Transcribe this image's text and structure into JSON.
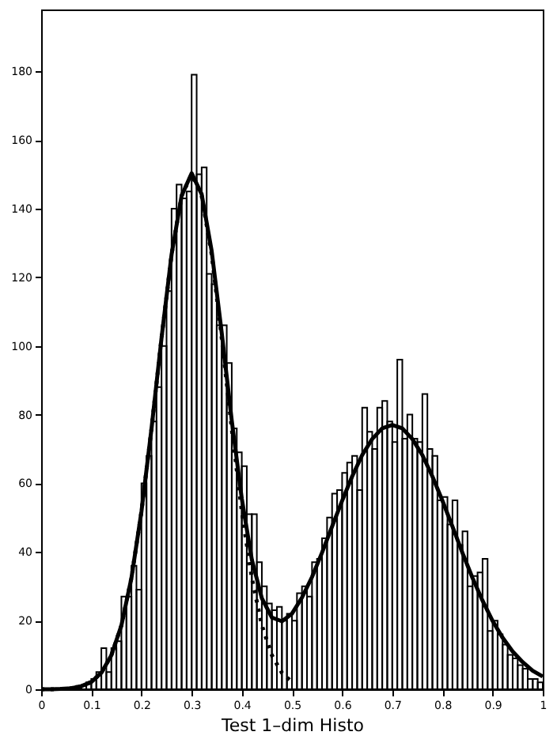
{
  "chart_data": {
    "type": "histogram",
    "xlabel": "Test 1–dim Histo",
    "xlim": [
      0,
      1
    ],
    "xticks": [
      0,
      0.1,
      0.2,
      0.3,
      0.4,
      0.5,
      0.6,
      0.7,
      0.8,
      0.9,
      1
    ],
    "ylim": [
      0,
      198
    ],
    "yticks": [
      0,
      20,
      40,
      60,
      80,
      100,
      120,
      140,
      160,
      180
    ],
    "series": [
      {
        "color": "#000000",
        "bins": [
          0,
          0.01,
          0.02,
          0.03,
          0.04,
          0.05,
          0.06,
          0.07,
          0.08,
          0.09,
          0.1,
          0.11,
          0.12,
          0.13,
          0.14,
          0.15,
          0.16,
          0.17,
          0.18,
          0.19,
          0.2,
          0.21,
          0.22,
          0.23,
          0.24,
          0.25,
          0.26,
          0.27,
          0.28,
          0.29,
          0.3,
          0.31,
          0.32,
          0.33,
          0.34,
          0.35,
          0.36,
          0.37,
          0.38,
          0.39,
          0.4,
          0.41,
          0.42,
          0.43,
          0.44,
          0.45,
          0.46,
          0.47,
          0.48,
          0.49,
          0.5,
          0.51,
          0.52,
          0.53,
          0.54,
          0.55,
          0.56,
          0.57,
          0.58,
          0.59,
          0.6,
          0.61,
          0.62,
          0.63,
          0.64,
          0.65,
          0.66,
          0.67,
          0.68,
          0.69,
          0.7,
          0.71,
          0.72,
          0.73,
          0.74,
          0.75,
          0.76,
          0.77,
          0.78,
          0.79,
          0.8,
          0.81,
          0.82,
          0.83,
          0.84,
          0.85,
          0.86,
          0.87,
          0.88,
          0.89,
          0.9,
          0.91,
          0.92,
          0.93,
          0.94,
          0.95,
          0.96,
          0.97,
          0.98,
          0.99,
          1
        ],
        "values": [
          0,
          0,
          0,
          0,
          0,
          0,
          0,
          1,
          1,
          2,
          3,
          5,
          12,
          5,
          12,
          14,
          27,
          27,
          36,
          29,
          60,
          68,
          78,
          88,
          100,
          116,
          140,
          147,
          143,
          145,
          179,
          150,
          152,
          121,
          118,
          106,
          106,
          95,
          76,
          69,
          65,
          51,
          51,
          37,
          30,
          25,
          23,
          24,
          20,
          22,
          20,
          28,
          30,
          27,
          37,
          38,
          44,
          50,
          57,
          58,
          63,
          66,
          68,
          58,
          82,
          75,
          70,
          82,
          84,
          78,
          72,
          96,
          73,
          80,
          73,
          72,
          86,
          70,
          68,
          55,
          56,
          48,
          55,
          42,
          46,
          30,
          33,
          34,
          38,
          17,
          20,
          16,
          13,
          10,
          9,
          7,
          6,
          3,
          3,
          2
        ]
      },
      {
        "type": "line",
        "color": "#000000",
        "line_style": "solid",
        "x": [
          0,
          0.02,
          0.04,
          0.06,
          0.08,
          0.1,
          0.12,
          0.14,
          0.16,
          0.18,
          0.2,
          0.22,
          0.24,
          0.26,
          0.28,
          0.3,
          0.32,
          0.34,
          0.36,
          0.38,
          0.4,
          0.42,
          0.44,
          0.46,
          0.48,
          0.5,
          0.52,
          0.54,
          0.56,
          0.58,
          0.6,
          0.62,
          0.64,
          0.66,
          0.68,
          0.7,
          0.72,
          0.74,
          0.76,
          0.78,
          0.8,
          0.82,
          0.84,
          0.86,
          0.88,
          0.9,
          0.92,
          0.94,
          0.96,
          0.98,
          1
        ],
        "values": [
          0,
          0,
          0.1,
          0.3,
          0.9,
          2.1,
          4.8,
          9.9,
          18.6,
          32.4,
          51.8,
          75.9,
          102.3,
          126.6,
          143.7,
          150.3,
          144.2,
          127.6,
          103.8,
          78.3,
          55.5,
          37.8,
          26.5,
          20.9,
          19.8,
          22,
          26.7,
          32.7,
          39.8,
          47.4,
          54.9,
          62,
          68.2,
          72.9,
          76,
          77,
          76,
          72.9,
          68.2,
          62,
          54.9,
          47.4,
          39.7,
          32.4,
          25.8,
          19.9,
          15,
          11,
          7.9,
          5.4,
          3.7
        ]
      },
      {
        "type": "line",
        "color": "#000000",
        "line_style": "dotted",
        "x": [
          0,
          0.02,
          0.04,
          0.06,
          0.08,
          0.1,
          0.12,
          0.14,
          0.16,
          0.18,
          0.2,
          0.22,
          0.24,
          0.26,
          0.28,
          0.3,
          0.32,
          0.34,
          0.36,
          0.38,
          0.4,
          0.42,
          0.44,
          0.46,
          0.48,
          0.5
        ],
        "values": [
          0,
          0,
          0.1,
          0.3,
          0.9,
          2.1,
          4.8,
          9.9,
          18.6,
          32.4,
          51.8,
          75.9,
          102.3,
          126.6,
          143.7,
          150,
          143.7,
          126.6,
          102.3,
          75.9,
          51.8,
          32.4,
          18.6,
          9.9,
          4.8,
          2.1
        ]
      }
    ]
  }
}
